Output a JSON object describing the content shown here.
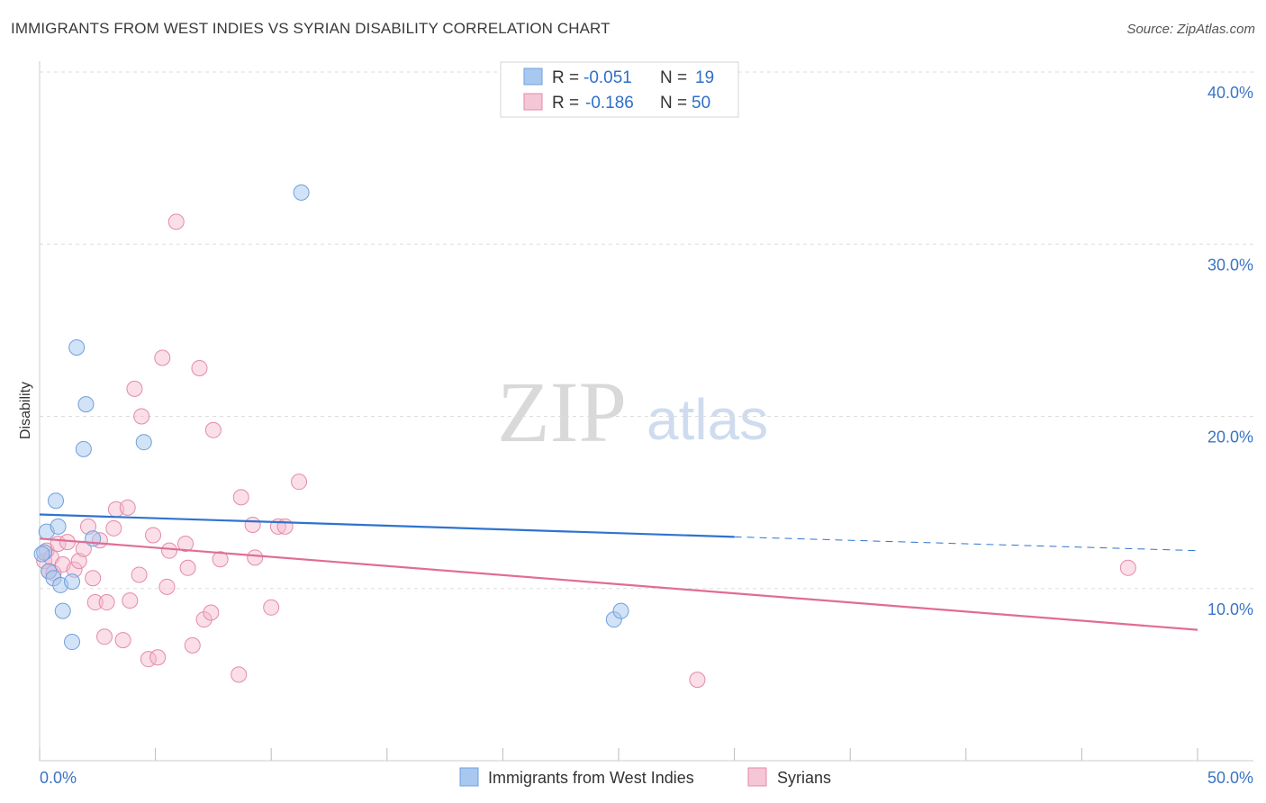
{
  "header": {
    "title": "IMMIGRANTS FROM WEST INDIES VS SYRIAN DISABILITY CORRELATION CHART",
    "source": "Source: ZipAtlas.com"
  },
  "watermark": {
    "zip": "ZIP",
    "atlas": "atlas"
  },
  "colors": {
    "blue_fill": "#a8c8f0",
    "blue_stroke": "#6f9fdc",
    "blue_line": "#2f73cf",
    "pink_fill": "#f5b8cb",
    "pink_stroke": "#e58aa8",
    "pink_line": "#e06c97",
    "grid": "#dddddd",
    "tick_text": "#3a74c4"
  },
  "legend_top": {
    "row1": {
      "r_label": "R = ",
      "r_value": "-0.051",
      "n_label": "N = ",
      "n_value": "19"
    },
    "row2": {
      "r_label": "R = ",
      "r_value": "-0.186",
      "n_label": "N = ",
      "n_value": "50"
    }
  },
  "legend_bottom": {
    "series1": "Immigrants from West Indies",
    "series2": "Syrians"
  },
  "chart_data": {
    "type": "scatter",
    "title": "IMMIGRANTS FROM WEST INDIES VS SYRIAN DISABILITY CORRELATION CHART",
    "xlabel": "",
    "ylabel": "Disability",
    "xlim": [
      0,
      50
    ],
    "ylim": [
      0,
      40
    ],
    "x_tick_labels": [
      "0.0%",
      "50.0%"
    ],
    "y_ticks": [
      10,
      20,
      30,
      40
    ],
    "y_tick_labels": [
      "10.0%",
      "20.0%",
      "30.0%",
      "40.0%"
    ],
    "grid": true,
    "series": [
      {
        "name": "Immigrants from West Indies",
        "color": "#a8c8f0",
        "R": -0.051,
        "N": 19,
        "trend": {
          "x0": 0,
          "y0": 14.3,
          "x1": 30,
          "y1": 13.0,
          "dashed_to_x": 50,
          "dashed_y": 12.2
        },
        "points": [
          [
            0.2,
            12.1
          ],
          [
            0.3,
            13.3
          ],
          [
            0.4,
            11.0
          ],
          [
            0.6,
            10.6
          ],
          [
            0.7,
            15.1
          ],
          [
            0.8,
            13.6
          ],
          [
            0.9,
            10.2
          ],
          [
            1.0,
            8.7
          ],
          [
            1.4,
            6.9
          ],
          [
            1.4,
            10.4
          ],
          [
            1.6,
            24.0
          ],
          [
            1.9,
            18.1
          ],
          [
            2.0,
            20.7
          ],
          [
            2.3,
            12.9
          ],
          [
            4.5,
            18.5
          ],
          [
            11.3,
            33.0
          ],
          [
            24.8,
            8.2
          ],
          [
            25.1,
            8.7
          ],
          [
            0.1,
            12.0
          ]
        ]
      },
      {
        "name": "Syrians",
        "color": "#f5b8cb",
        "R": -0.186,
        "N": 50,
        "trend": {
          "x0": 0,
          "y0": 12.9,
          "x1": 50,
          "y1": 7.6
        },
        "points": [
          [
            0.2,
            11.6
          ],
          [
            0.3,
            12.2
          ],
          [
            0.4,
            11.0
          ],
          [
            0.5,
            11.8
          ],
          [
            0.6,
            10.9
          ],
          [
            0.8,
            12.6
          ],
          [
            1.0,
            11.4
          ],
          [
            1.2,
            12.7
          ],
          [
            1.5,
            11.1
          ],
          [
            1.7,
            11.6
          ],
          [
            1.9,
            12.3
          ],
          [
            2.1,
            13.6
          ],
          [
            2.3,
            10.6
          ],
          [
            2.4,
            9.2
          ],
          [
            2.6,
            12.8
          ],
          [
            2.8,
            7.2
          ],
          [
            2.9,
            9.2
          ],
          [
            3.2,
            13.5
          ],
          [
            3.3,
            14.6
          ],
          [
            3.6,
            7.0
          ],
          [
            3.8,
            14.7
          ],
          [
            3.9,
            9.3
          ],
          [
            4.1,
            21.6
          ],
          [
            4.3,
            10.8
          ],
          [
            4.4,
            20.0
          ],
          [
            4.7,
            5.9
          ],
          [
            4.9,
            13.1
          ],
          [
            5.1,
            6.0
          ],
          [
            5.3,
            23.4
          ],
          [
            5.5,
            10.1
          ],
          [
            5.6,
            12.2
          ],
          [
            5.9,
            31.3
          ],
          [
            6.3,
            12.6
          ],
          [
            6.4,
            11.2
          ],
          [
            6.6,
            6.7
          ],
          [
            6.9,
            22.8
          ],
          [
            7.1,
            8.2
          ],
          [
            7.4,
            8.6
          ],
          [
            7.5,
            19.2
          ],
          [
            7.8,
            11.7
          ],
          [
            8.6,
            5.0
          ],
          [
            8.7,
            15.3
          ],
          [
            9.2,
            13.7
          ],
          [
            9.3,
            11.8
          ],
          [
            10.0,
            8.9
          ],
          [
            10.3,
            13.6
          ],
          [
            10.6,
            13.6
          ],
          [
            11.2,
            16.2
          ],
          [
            28.4,
            4.7
          ],
          [
            47.0,
            11.2
          ]
        ]
      }
    ]
  }
}
